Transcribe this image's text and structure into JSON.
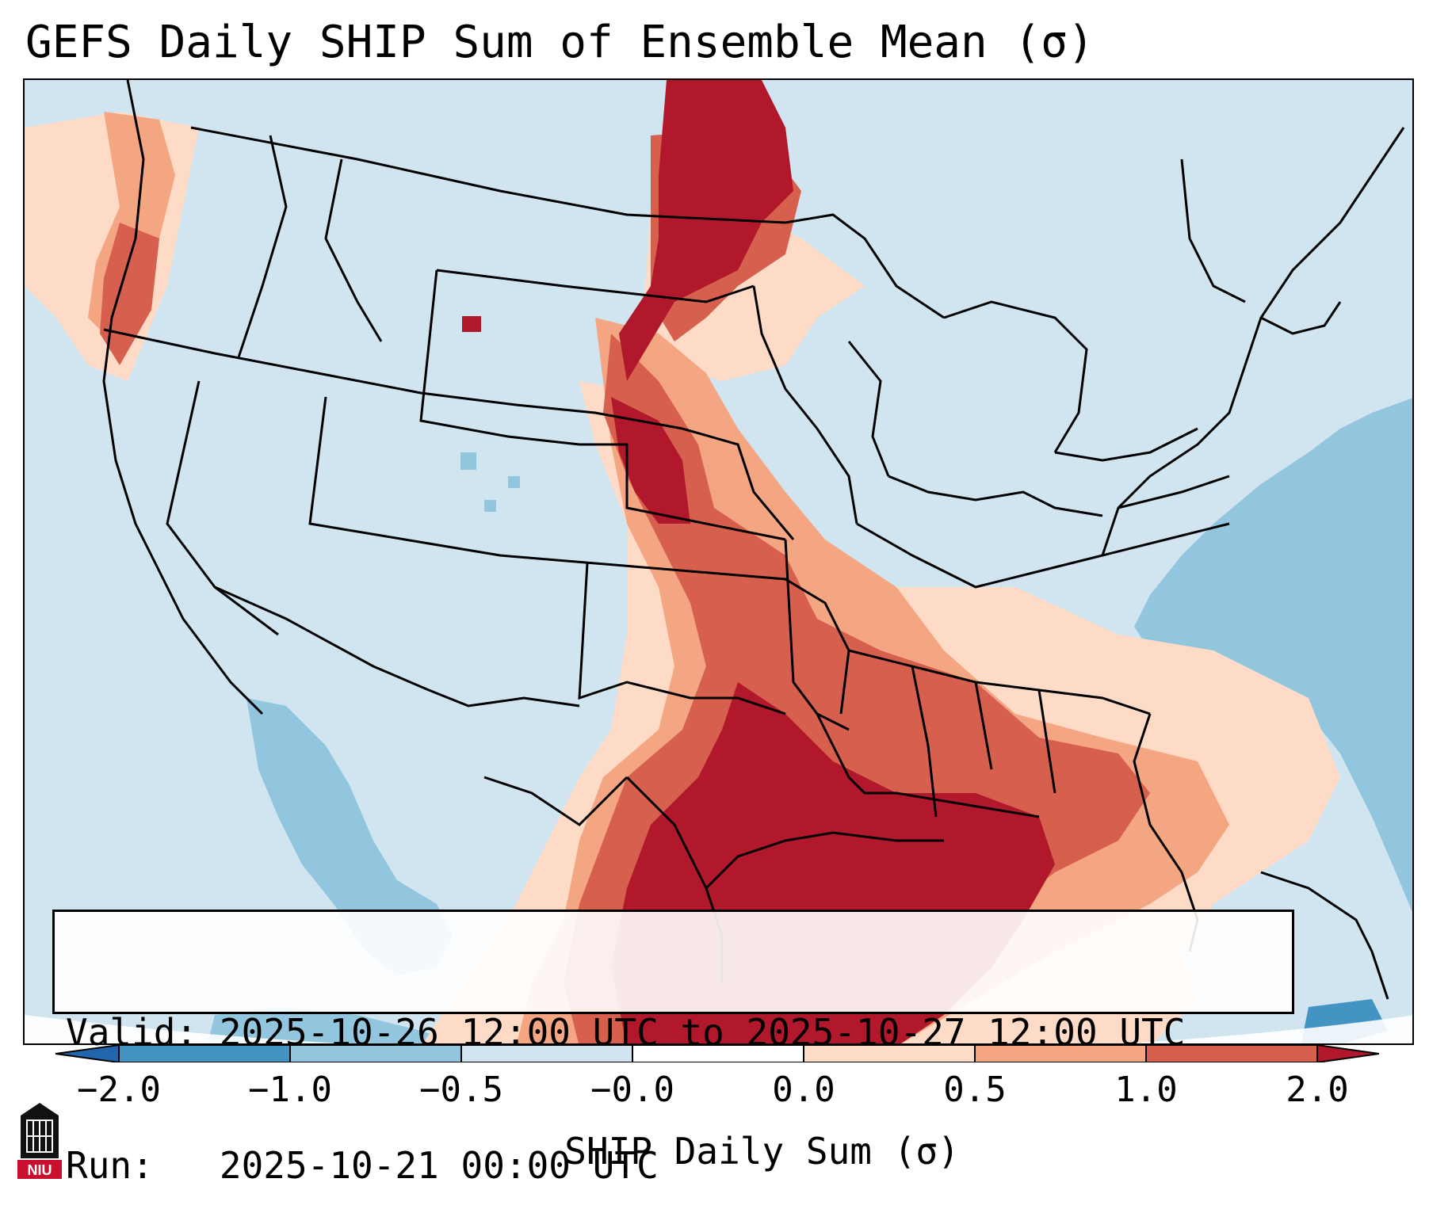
{
  "title": "GEFS Daily SHIP Sum of Ensemble Mean (σ)",
  "info_box": {
    "valid_label": "Valid:",
    "valid_value": "2025-10-26 12:00 UTC to 2025-10-27 12:00 UTC",
    "run_label": "Run:",
    "run_value": "2025-10-21 00:00 UTC"
  },
  "colorbar": {
    "label": "SHIP Daily Sum (σ)",
    "ticks": [
      "−2.0",
      "−1.0",
      "−0.5",
      "−0.0",
      "0.0",
      "0.5",
      "1.0",
      "2.0"
    ],
    "colors": {
      "extend_low": "#2166ac",
      "bin_-2_-1": "#4393c3",
      "bin_-1_-0.5": "#92c5de",
      "bin_-0.5_0": "#d1e5f0",
      "bin_0_0": "#ffffff",
      "bin_0_0.5": "#fddbc7",
      "bin_0.5_1": "#f4a582",
      "bin_1_2": "#d6604d",
      "extend_high": "#b2182b"
    }
  },
  "logo": {
    "text": "NIU",
    "color": "#c8102e"
  },
  "map": {
    "region": "Contiguous United States",
    "projection": "Lambert Conformal",
    "features": [
      "state borders",
      "coastlines",
      "international borders"
    ]
  }
}
